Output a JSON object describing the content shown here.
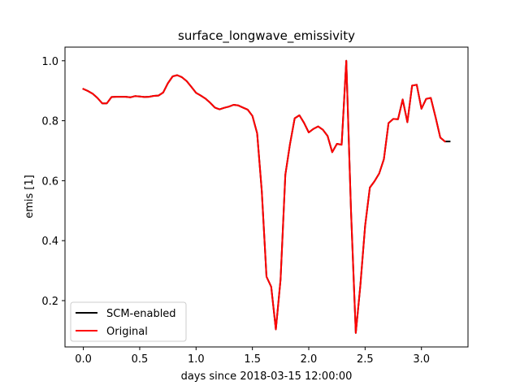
{
  "chart_data": {
    "type": "line",
    "title": "surface_longwave_emissivity",
    "xlabel": "days since 2018-03-15 12:00:00",
    "ylabel": "emis [1]",
    "xlim": [
      -0.163,
      3.413
    ],
    "ylim": [
      0.0455,
      1.0455
    ],
    "xticks": [
      0.0,
      0.5,
      1.0,
      1.5,
      2.0,
      2.5,
      3.0
    ],
    "xtick_labels": [
      "0.0",
      "0.5",
      "1.0",
      "1.5",
      "2.0",
      "2.5",
      "3.0"
    ],
    "yticks": [
      0.2,
      0.4,
      0.6,
      0.8,
      1.0
    ],
    "ytick_labels": [
      "0.2",
      "0.4",
      "0.6",
      "0.8",
      "1.0"
    ],
    "grid": false,
    "legend_position": "lower-left",
    "series": [
      {
        "name": "SCM-enabled",
        "color": "#000000",
        "x": [
          0.0,
          0.042,
          0.083,
          0.125,
          0.167,
          0.208,
          0.25,
          0.292,
          0.333,
          0.375,
          0.417,
          0.458,
          0.5,
          0.542,
          0.583,
          0.625,
          0.667,
          0.708,
          0.75,
          0.792,
          0.833,
          0.875,
          0.917,
          0.958,
          1.0,
          1.042,
          1.083,
          1.125,
          1.167,
          1.208,
          1.25,
          1.292,
          1.333,
          1.375,
          1.417,
          1.458,
          1.5,
          1.542,
          1.583,
          1.625,
          1.667,
          1.708,
          1.75,
          1.792,
          1.833,
          1.875,
          1.917,
          1.958,
          2.0,
          2.042,
          2.083,
          2.125,
          2.167,
          2.208,
          2.25,
          2.292,
          2.333,
          2.375,
          2.417,
          2.458,
          2.5,
          2.542,
          2.583,
          2.625,
          2.667,
          2.708,
          2.75,
          2.792,
          2.833,
          2.875,
          2.917,
          2.958,
          3.0,
          3.042,
          3.083,
          3.125,
          3.167,
          3.208,
          3.25
        ],
        "values": [
          0.906,
          0.899,
          0.89,
          0.876,
          0.858,
          0.858,
          0.879,
          0.88,
          0.88,
          0.88,
          0.878,
          0.882,
          0.881,
          0.879,
          0.88,
          0.883,
          0.884,
          0.894,
          0.925,
          0.948,
          0.952,
          0.945,
          0.932,
          0.913,
          0.893,
          0.884,
          0.874,
          0.86,
          0.844,
          0.838,
          0.843,
          0.847,
          0.853,
          0.851,
          0.844,
          0.837,
          0.816,
          0.758,
          0.565,
          0.28,
          0.246,
          0.104,
          0.27,
          0.62,
          0.722,
          0.808,
          0.818,
          0.793,
          0.761,
          0.773,
          0.781,
          0.77,
          0.749,
          0.695,
          0.723,
          0.72,
          1.0,
          0.5,
          0.092,
          0.25,
          0.45,
          0.577,
          0.598,
          0.624,
          0.672,
          0.792,
          0.806,
          0.805,
          0.871,
          0.795,
          0.917,
          0.92,
          0.84,
          0.873,
          0.876,
          0.812,
          0.744,
          0.731,
          0.731
        ]
      },
      {
        "name": "Original",
        "color": "#ff0000",
        "x": [
          0.0,
          0.042,
          0.083,
          0.125,
          0.167,
          0.208,
          0.25,
          0.292,
          0.333,
          0.375,
          0.417,
          0.458,
          0.5,
          0.542,
          0.583,
          0.625,
          0.667,
          0.708,
          0.75,
          0.792,
          0.833,
          0.875,
          0.917,
          0.958,
          1.0,
          1.042,
          1.083,
          1.125,
          1.167,
          1.208,
          1.25,
          1.292,
          1.333,
          1.375,
          1.417,
          1.458,
          1.5,
          1.542,
          1.583,
          1.625,
          1.667,
          1.708,
          1.75,
          1.792,
          1.833,
          1.875,
          1.917,
          1.958,
          2.0,
          2.042,
          2.083,
          2.125,
          2.167,
          2.208,
          2.25,
          2.292,
          2.333,
          2.375,
          2.417,
          2.458,
          2.5,
          2.542,
          2.583,
          2.625,
          2.667,
          2.708,
          2.75,
          2.792,
          2.833,
          2.875,
          2.917,
          2.958,
          3.0,
          3.042,
          3.083,
          3.125,
          3.167,
          3.208
        ],
        "values": [
          0.906,
          0.899,
          0.89,
          0.876,
          0.858,
          0.858,
          0.879,
          0.88,
          0.88,
          0.88,
          0.878,
          0.882,
          0.881,
          0.879,
          0.88,
          0.883,
          0.884,
          0.894,
          0.925,
          0.948,
          0.952,
          0.945,
          0.932,
          0.913,
          0.893,
          0.884,
          0.874,
          0.86,
          0.844,
          0.838,
          0.843,
          0.847,
          0.853,
          0.851,
          0.844,
          0.837,
          0.816,
          0.758,
          0.565,
          0.28,
          0.246,
          0.104,
          0.27,
          0.62,
          0.722,
          0.808,
          0.818,
          0.793,
          0.761,
          0.773,
          0.781,
          0.77,
          0.749,
          0.695,
          0.723,
          0.72,
          1.0,
          0.5,
          0.092,
          0.25,
          0.45,
          0.577,
          0.598,
          0.624,
          0.672,
          0.792,
          0.806,
          0.805,
          0.871,
          0.795,
          0.917,
          0.92,
          0.84,
          0.873,
          0.876,
          0.812,
          0.744,
          0.731
        ]
      }
    ]
  }
}
